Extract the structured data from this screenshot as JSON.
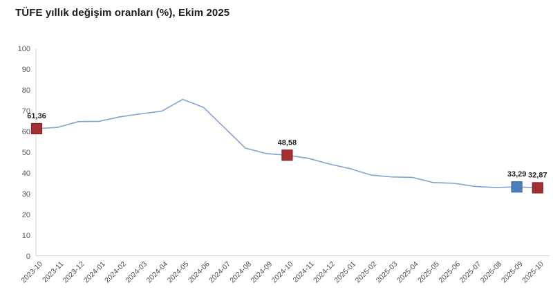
{
  "title": "TÜFE yıllık değişim oranları (%), Ekim 2025",
  "chart_data": {
    "type": "line",
    "title": "TÜFE yıllık değişim oranları (%), Ekim 2025",
    "xlabel": "",
    "ylabel": "",
    "ylim": [
      0,
      100
    ],
    "ytick_step": 10,
    "grid": false,
    "legend": "none",
    "line_color": "#7da4d4",
    "axis_color": "#d6d6d6",
    "tick_label_color": "#555555",
    "data_label_color": "#222222",
    "categories": [
      "2023-10",
      "2023-11",
      "2023-12",
      "2024-01",
      "2024-02",
      "2024-03",
      "2024-04",
      "2024-05",
      "2024-06",
      "2024-07",
      "2024-08",
      "2024-09",
      "2024-10",
      "2024-11",
      "2024-12",
      "2025-01",
      "2025-02",
      "2025-03",
      "2025-04",
      "2025-05",
      "2025-06",
      "2025-07",
      "2025-08",
      "2025-09",
      "2025-10"
    ],
    "values": [
      61.36,
      61.98,
      64.77,
      64.86,
      67.07,
      68.5,
      69.8,
      75.45,
      71.6,
      61.78,
      51.97,
      49.38,
      48.58,
      47.09,
      44.38,
      42.12,
      39.05,
      38.1,
      37.86,
      35.41,
      35.05,
      33.52,
      32.95,
      33.29,
      32.87
    ],
    "markers": [
      {
        "category": "2023-10",
        "index": 0,
        "value": 61.36,
        "label": "61,36",
        "color": "#a43031",
        "border": "#862425"
      },
      {
        "category": "2024-10",
        "index": 12,
        "value": 48.58,
        "label": "48,58",
        "color": "#a43031",
        "border": "#862425"
      },
      {
        "category": "2025-09",
        "index": 23,
        "value": 33.29,
        "label": "33,29",
        "color": "#4a7ebc",
        "border": "#3a6aa5"
      },
      {
        "category": "2025-10",
        "index": 24,
        "value": 32.87,
        "label": "32,87",
        "color": "#a43031",
        "border": "#862425"
      }
    ]
  }
}
